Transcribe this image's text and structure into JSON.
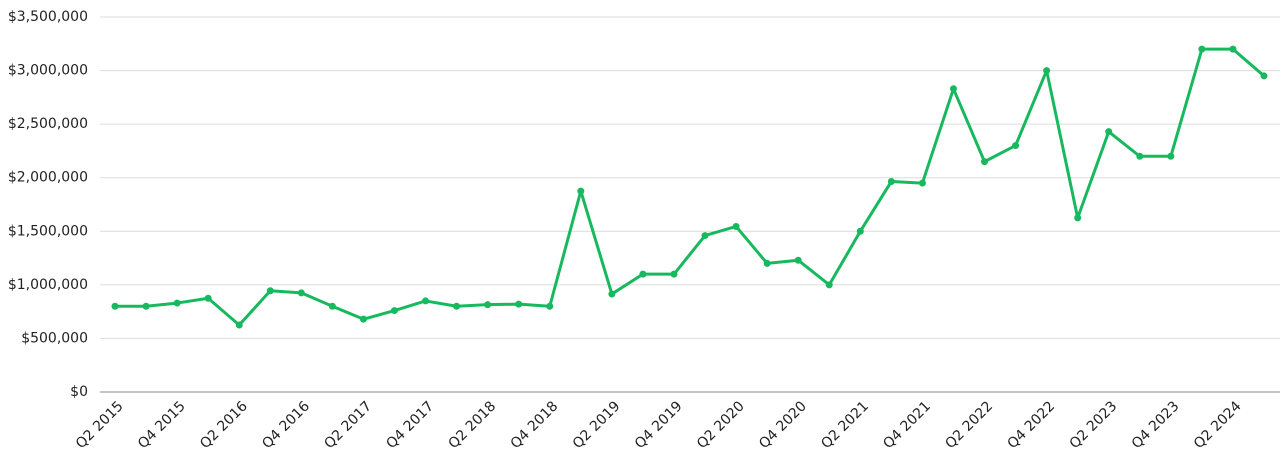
{
  "chart_data": {
    "type": "line",
    "categories": [
      "Q2 2015",
      null,
      "Q4 2015",
      null,
      "Q2 2016",
      null,
      "Q4 2016",
      null,
      "Q2 2017",
      null,
      "Q4 2017",
      null,
      "Q2 2018",
      null,
      "Q4 2018",
      null,
      "Q2 2019",
      null,
      "Q4 2019",
      null,
      "Q2 2020",
      null,
      "Q4 2020",
      null,
      "Q2 2021",
      null,
      "Q4 2021",
      null,
      "Q2 2022",
      null,
      "Q4 2022",
      null,
      "Q2 2023",
      null,
      "Q4 2023",
      null,
      "Q2 2024",
      null
    ],
    "series": [
      {
        "color": "#18b95e",
        "values": [
          800000,
          800000,
          830000,
          875000,
          625000,
          945000,
          925000,
          800000,
          680000,
          760000,
          850000,
          800000,
          815000,
          820000,
          800000,
          1875000,
          915000,
          1100000,
          1100000,
          1460000,
          1545000,
          1200000,
          1230000,
          1000000,
          1500000,
          1965000,
          1950000,
          2830000,
          2150000,
          2300000,
          3000000,
          1625000,
          2430000,
          2200000,
          2200000,
          3200000,
          3200000,
          2950000
        ]
      }
    ],
    "ylim": [
      0,
      3500000
    ],
    "yticks": [
      {
        "value": 0,
        "label": "$0"
      },
      {
        "value": 500000,
        "label": "$500,000"
      },
      {
        "value": 1000000,
        "label": "$1,000,000"
      },
      {
        "value": 1500000,
        "label": "$1,500,000"
      },
      {
        "value": 2000000,
        "label": "$2,000,000"
      },
      {
        "value": 2500000,
        "label": "$2,500,000"
      },
      {
        "value": 3000000,
        "label": "$3,000,000"
      },
      {
        "value": 3500000,
        "label": "$3,500,000"
      }
    ],
    "grid": true
  }
}
